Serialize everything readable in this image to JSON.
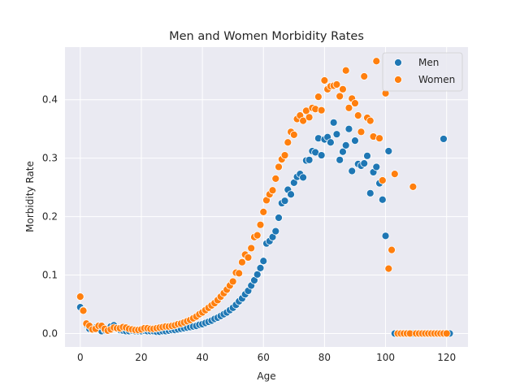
{
  "chart_data": {
    "type": "scatter",
    "title": "Men and Women Morbidity Rates",
    "xlabel": "Age",
    "ylabel": "Morbidity Rate",
    "xlim": [
      -5,
      127
    ],
    "ylim": [
      -0.023,
      0.49
    ],
    "xticks": [
      0,
      20,
      40,
      60,
      80,
      100,
      120
    ],
    "yticks": [
      0.0,
      0.1,
      0.2,
      0.3,
      0.4
    ],
    "ytick_labels": [
      "0.0",
      "0.1",
      "0.2",
      "0.3",
      "0.4"
    ],
    "grid": true,
    "legend_position": "top-right",
    "series": [
      {
        "name": "Men",
        "color": "#1f77b4",
        "points": [
          [
            0,
            0.045
          ],
          [
            1,
            0.04
          ],
          [
            2,
            0.015
          ],
          [
            3,
            0.008
          ],
          [
            4,
            0.007
          ],
          [
            5,
            0.01
          ],
          [
            6,
            0.008
          ],
          [
            7,
            0.004
          ],
          [
            8,
            0.006
          ],
          [
            9,
            0.008
          ],
          [
            10,
            0.012
          ],
          [
            11,
            0.014
          ],
          [
            12,
            0.008
          ],
          [
            13,
            0.006
          ],
          [
            14,
            0.005
          ],
          [
            15,
            0.004
          ],
          [
            16,
            0.004
          ],
          [
            17,
            0.005
          ],
          [
            18,
            0.004
          ],
          [
            19,
            0.004
          ],
          [
            20,
            0.004
          ],
          [
            21,
            0.005
          ],
          [
            22,
            0.004
          ],
          [
            23,
            0.004
          ],
          [
            24,
            0.004
          ],
          [
            25,
            0.003
          ],
          [
            26,
            0.003
          ],
          [
            27,
            0.004
          ],
          [
            28,
            0.004
          ],
          [
            29,
            0.005
          ],
          [
            30,
            0.006
          ],
          [
            31,
            0.006
          ],
          [
            32,
            0.007
          ],
          [
            33,
            0.008
          ],
          [
            34,
            0.009
          ],
          [
            35,
            0.01
          ],
          [
            36,
            0.011
          ],
          [
            37,
            0.012
          ],
          [
            38,
            0.013
          ],
          [
            39,
            0.015
          ],
          [
            40,
            0.016
          ],
          [
            41,
            0.018
          ],
          [
            42,
            0.02
          ],
          [
            43,
            0.022
          ],
          [
            44,
            0.025
          ],
          [
            45,
            0.027
          ],
          [
            46,
            0.03
          ],
          [
            47,
            0.033
          ],
          [
            48,
            0.036
          ],
          [
            49,
            0.04
          ],
          [
            50,
            0.044
          ],
          [
            51,
            0.049
          ],
          [
            52,
            0.055
          ],
          [
            53,
            0.06
          ],
          [
            54,
            0.067
          ],
          [
            55,
            0.073
          ],
          [
            56,
            0.082
          ],
          [
            57,
            0.091
          ],
          [
            58,
            0.101
          ],
          [
            59,
            0.112
          ],
          [
            60,
            0.124
          ],
          [
            61,
            0.154
          ],
          [
            62,
            0.158
          ],
          [
            63,
            0.165
          ],
          [
            64,
            0.175
          ],
          [
            65,
            0.198
          ],
          [
            66,
            0.223
          ],
          [
            67,
            0.227
          ],
          [
            68,
            0.246
          ],
          [
            69,
            0.238
          ],
          [
            70,
            0.258
          ],
          [
            71,
            0.268
          ],
          [
            72,
            0.273
          ],
          [
            73,
            0.267
          ],
          [
            74,
            0.296
          ],
          [
            75,
            0.297
          ],
          [
            76,
            0.312
          ],
          [
            77,
            0.31
          ],
          [
            78,
            0.334
          ],
          [
            79,
            0.305
          ],
          [
            80,
            0.332
          ],
          [
            81,
            0.336
          ],
          [
            82,
            0.327
          ],
          [
            83,
            0.361
          ],
          [
            84,
            0.341
          ],
          [
            85,
            0.297
          ],
          [
            86,
            0.311
          ],
          [
            87,
            0.322
          ],
          [
            88,
            0.35
          ],
          [
            89,
            0.278
          ],
          [
            90,
            0.33
          ],
          [
            91,
            0.29
          ],
          [
            92,
            0.287
          ],
          [
            93,
            0.291
          ],
          [
            94,
            0.304
          ],
          [
            95,
            0.24
          ],
          [
            96,
            0.276
          ],
          [
            97,
            0.285
          ],
          [
            98,
            0.257
          ],
          [
            99,
            0.229
          ],
          [
            100,
            0.167
          ],
          [
            101,
            0.312
          ],
          [
            103,
            0.0
          ],
          [
            104,
            0.0
          ],
          [
            105,
            0.0
          ],
          [
            106,
            0.0
          ],
          [
            107,
            0.0
          ],
          [
            108,
            0.0
          ],
          [
            109,
            0.0
          ],
          [
            110,
            0.0
          ],
          [
            111,
            0.0
          ],
          [
            112,
            0.0
          ],
          [
            113,
            0.0
          ],
          [
            114,
            0.0
          ],
          [
            115,
            0.0
          ],
          [
            116,
            0.0
          ],
          [
            117,
            0.0
          ],
          [
            118,
            0.0
          ],
          [
            119,
            0.333
          ],
          [
            120,
            0.0
          ],
          [
            121,
            0.0
          ]
        ]
      },
      {
        "name": "Women",
        "color": "#ff7f0e",
        "points": [
          [
            0,
            0.063
          ],
          [
            1,
            0.039
          ],
          [
            2,
            0.017
          ],
          [
            3,
            0.013
          ],
          [
            4,
            0.007
          ],
          [
            5,
            0.008
          ],
          [
            6,
            0.013
          ],
          [
            7,
            0.013
          ],
          [
            8,
            0.008
          ],
          [
            9,
            0.005
          ],
          [
            10,
            0.007
          ],
          [
            11,
            0.01
          ],
          [
            12,
            0.009
          ],
          [
            13,
            0.009
          ],
          [
            14,
            0.011
          ],
          [
            15,
            0.01
          ],
          [
            16,
            0.008
          ],
          [
            17,
            0.007
          ],
          [
            18,
            0.006
          ],
          [
            19,
            0.006
          ],
          [
            20,
            0.007
          ],
          [
            21,
            0.009
          ],
          [
            22,
            0.009
          ],
          [
            23,
            0.008
          ],
          [
            24,
            0.008
          ],
          [
            25,
            0.009
          ],
          [
            26,
            0.01
          ],
          [
            27,
            0.011
          ],
          [
            28,
            0.012
          ],
          [
            29,
            0.012
          ],
          [
            30,
            0.013
          ],
          [
            31,
            0.014
          ],
          [
            32,
            0.016
          ],
          [
            33,
            0.017
          ],
          [
            34,
            0.019
          ],
          [
            35,
            0.021
          ],
          [
            36,
            0.023
          ],
          [
            37,
            0.026
          ],
          [
            38,
            0.029
          ],
          [
            39,
            0.033
          ],
          [
            40,
            0.036
          ],
          [
            41,
            0.04
          ],
          [
            42,
            0.044
          ],
          [
            43,
            0.048
          ],
          [
            44,
            0.052
          ],
          [
            45,
            0.057
          ],
          [
            46,
            0.063
          ],
          [
            47,
            0.069
          ],
          [
            48,
            0.075
          ],
          [
            49,
            0.082
          ],
          [
            50,
            0.089
          ],
          [
            51,
            0.104
          ],
          [
            52,
            0.103
          ],
          [
            53,
            0.122
          ],
          [
            54,
            0.135
          ],
          [
            55,
            0.13
          ],
          [
            56,
            0.146
          ],
          [
            57,
            0.165
          ],
          [
            58,
            0.168
          ],
          [
            59,
            0.186
          ],
          [
            60,
            0.208
          ],
          [
            61,
            0.228
          ],
          [
            62,
            0.238
          ],
          [
            63,
            0.245
          ],
          [
            64,
            0.265
          ],
          [
            65,
            0.285
          ],
          [
            66,
            0.298
          ],
          [
            67,
            0.305
          ],
          [
            68,
            0.327
          ],
          [
            69,
            0.345
          ],
          [
            70,
            0.34
          ],
          [
            71,
            0.367
          ],
          [
            72,
            0.373
          ],
          [
            73,
            0.364
          ],
          [
            74,
            0.381
          ],
          [
            75,
            0.37
          ],
          [
            76,
            0.386
          ],
          [
            77,
            0.384
          ],
          [
            78,
            0.405
          ],
          [
            79,
            0.382
          ],
          [
            80,
            0.433
          ],
          [
            81,
            0.418
          ],
          [
            82,
            0.423
          ],
          [
            83,
            0.424
          ],
          [
            84,
            0.426
          ],
          [
            85,
            0.406
          ],
          [
            86,
            0.418
          ],
          [
            87,
            0.45
          ],
          [
            88,
            0.386
          ],
          [
            89,
            0.402
          ],
          [
            90,
            0.394
          ],
          [
            91,
            0.373
          ],
          [
            92,
            0.345
          ],
          [
            93,
            0.44
          ],
          [
            94,
            0.369
          ],
          [
            95,
            0.364
          ],
          [
            96,
            0.337
          ],
          [
            97,
            0.466
          ],
          [
            98,
            0.334
          ],
          [
            99,
            0.262
          ],
          [
            100,
            0.411
          ],
          [
            101,
            0.111
          ],
          [
            102,
            0.143
          ],
          [
            103,
            0.273
          ],
          [
            104,
            0.0
          ],
          [
            105,
            0.0
          ],
          [
            106,
            0.0
          ],
          [
            107,
            0.0
          ],
          [
            108,
            0.0
          ],
          [
            109,
            0.251
          ],
          [
            110,
            0.0
          ],
          [
            111,
            0.0
          ],
          [
            112,
            0.0
          ],
          [
            113,
            0.0
          ],
          [
            114,
            0.0
          ],
          [
            115,
            0.0
          ],
          [
            116,
            0.0
          ],
          [
            117,
            0.0
          ],
          [
            118,
            0.0
          ],
          [
            119,
            0.0
          ],
          [
            120,
            0.0
          ]
        ]
      }
    ]
  }
}
